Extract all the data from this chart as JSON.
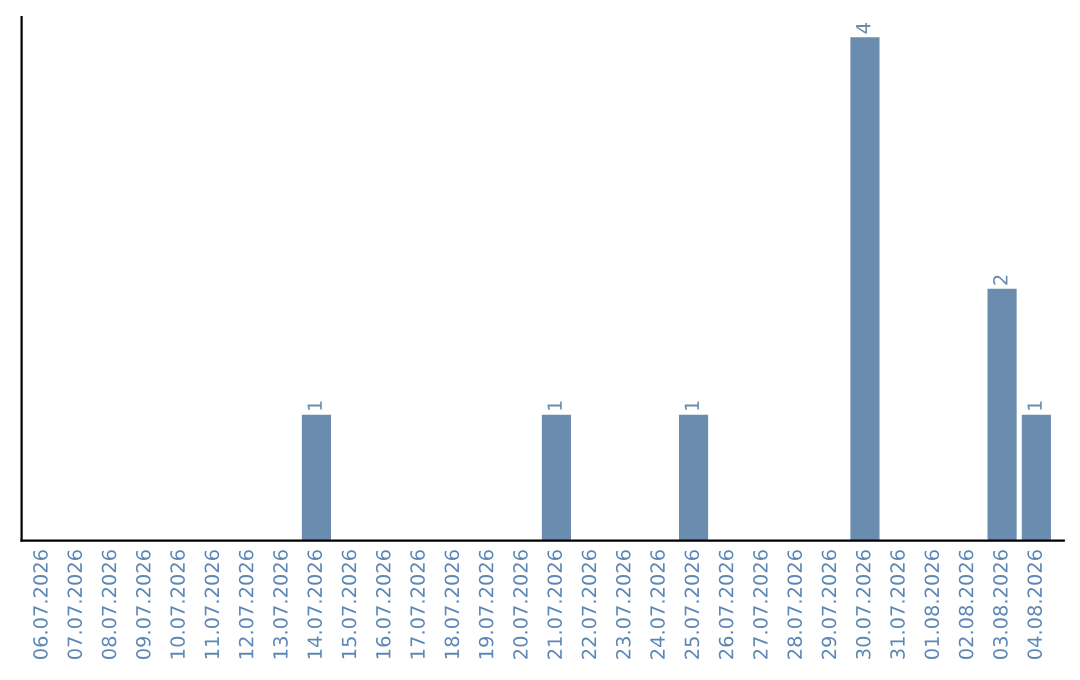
{
  "chart_data": {
    "type": "bar",
    "categories": [
      "06.07.2026",
      "07.07.2026",
      "08.07.2026",
      "09.07.2026",
      "10.07.2026",
      "11.07.2026",
      "12.07.2026",
      "13.07.2026",
      "14.07.2026",
      "15.07.2026",
      "16.07.2026",
      "17.07.2026",
      "18.07.2026",
      "19.07.2026",
      "20.07.2026",
      "21.07.2026",
      "22.07.2026",
      "23.07.2026",
      "24.07.2026",
      "25.07.2026",
      "26.07.2026",
      "27.07.2026",
      "28.07.2026",
      "29.07.2026",
      "30.07.2026",
      "31.07.2026",
      "01.08.2026",
      "02.08.2026",
      "03.08.2026",
      "04.08.2026"
    ],
    "values": [
      0,
      0,
      0,
      0,
      0,
      0,
      0,
      0,
      1,
      0,
      0,
      0,
      0,
      0,
      0,
      1,
      0,
      0,
      0,
      1,
      0,
      0,
      0,
      0,
      4,
      0,
      0,
      0,
      2,
      1
    ],
    "value_labels": [
      null,
      null,
      null,
      null,
      null,
      null,
      null,
      null,
      "1",
      null,
      null,
      null,
      null,
      null,
      null,
      "1",
      null,
      null,
      null,
      "1",
      null,
      null,
      null,
      null,
      "4",
      null,
      null,
      null,
      "2",
      "1"
    ],
    "color": "#6a8caf",
    "tick_labels": "x",
    "grid": false,
    "legend": false
  }
}
